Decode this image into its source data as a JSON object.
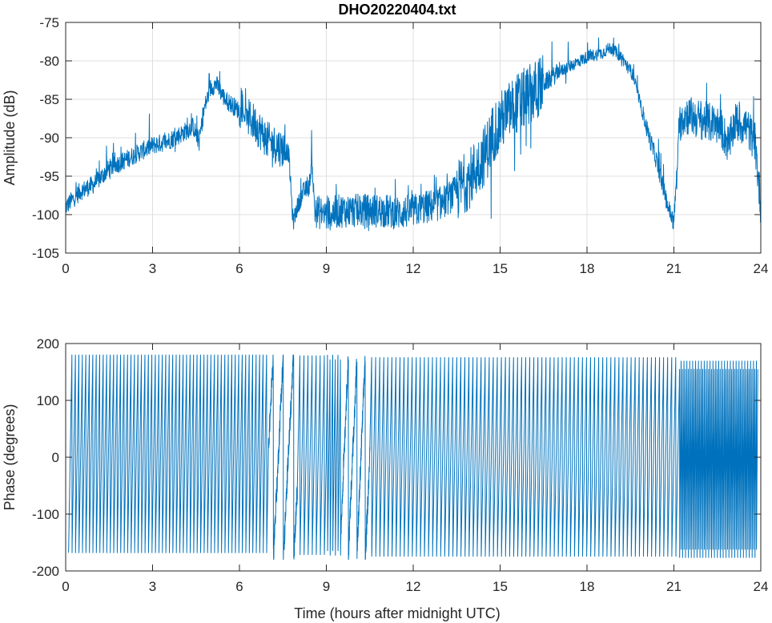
{
  "title": "DHO20220404.txt",
  "colors": {
    "series": "#0072bd",
    "axes": "#262626",
    "grid": "#dfdfdf"
  },
  "chart_data": [
    {
      "type": "line",
      "title": "DHO20220404.txt",
      "xlabel": "",
      "ylabel": "Amplitude (dB)",
      "xlim": [
        0,
        24
      ],
      "ylim": [
        -105,
        -75
      ],
      "xticks": [
        0,
        3,
        6,
        9,
        12,
        15,
        18,
        21,
        24
      ],
      "yticks": [
        -105,
        -100,
        -95,
        -90,
        -85,
        -80,
        -75
      ],
      "grid": true,
      "series": [
        {
          "x": [
            0,
            0.5,
            1,
            1.5,
            2,
            2.5,
            3,
            3.5,
            4,
            4.4,
            4.6,
            4.8,
            5.0,
            5.2,
            5.5,
            6.0,
            6.5,
            7.0,
            7.3,
            7.5,
            7.7,
            7.85,
            8.0,
            8.2,
            8.4,
            8.5,
            8.6,
            9.0,
            9.5,
            10,
            10.5,
            11,
            11.5,
            12,
            12.5,
            13,
            13.5,
            14,
            14.5,
            14.8,
            15.2,
            15.6,
            16,
            16.5,
            17,
            17.5,
            18,
            18.5,
            18.8,
            19.2,
            19.6,
            20.0,
            20.4,
            20.8,
            21.0,
            21.2,
            21.4,
            21.8,
            22.2,
            22.6,
            22.9,
            23.1,
            23.5,
            23.8,
            24
          ],
          "y": [
            -99,
            -97,
            -96,
            -94,
            -93,
            -92,
            -91,
            -90.5,
            -89.5,
            -88.5,
            -90.5,
            -86,
            -83.5,
            -83,
            -85,
            -86.5,
            -88,
            -90.5,
            -91,
            -91.5,
            -92,
            -101,
            -99,
            -97,
            -96.5,
            -93,
            -99.5,
            -100,
            -99.5,
            -99.5,
            -99.5,
            -99.5,
            -99.8,
            -99.5,
            -99,
            -98.5,
            -97,
            -95,
            -92,
            -89,
            -87,
            -85.5,
            -84.5,
            -83,
            -81.5,
            -80.5,
            -79.5,
            -79,
            -78.3,
            -79.5,
            -82,
            -88,
            -93,
            -99,
            -101,
            -88,
            -87,
            -87.5,
            -88,
            -88.5,
            -91,
            -88,
            -88.5,
            -90.5,
            -99
          ]
        }
      ]
    },
    {
      "type": "line",
      "title": "",
      "xlabel": "Time (hours after midnight UTC)",
      "ylabel": "Phase (degrees)",
      "xlim": [
        0,
        24
      ],
      "ylim": [
        -200,
        200
      ],
      "xticks": [
        0,
        3,
        6,
        9,
        12,
        15,
        18,
        21,
        24
      ],
      "yticks": [
        -200,
        -100,
        0,
        100,
        200
      ],
      "grid": false,
      "series": [
        {
          "description_range": [
            -180,
            180
          ],
          "wrap_segments": [
            {
              "x_start": 0.1,
              "x_end": 7.0,
              "period": 0.12
            },
            {
              "x_start": 7.0,
              "x_end": 8.0,
              "period": 0.35
            },
            {
              "x_start": 8.0,
              "x_end": 9.0,
              "period": 0.14
            },
            {
              "x_start": 9.0,
              "x_end": 9.5,
              "period": 0.09
            },
            {
              "x_start": 9.5,
              "x_end": 10.5,
              "period": 0.3
            },
            {
              "x_start": 10.5,
              "x_end": 21.2,
              "period": 0.14
            },
            {
              "x_start": 21.2,
              "x_end": 23.9,
              "period": 0.05
            }
          ]
        }
      ]
    }
  ]
}
